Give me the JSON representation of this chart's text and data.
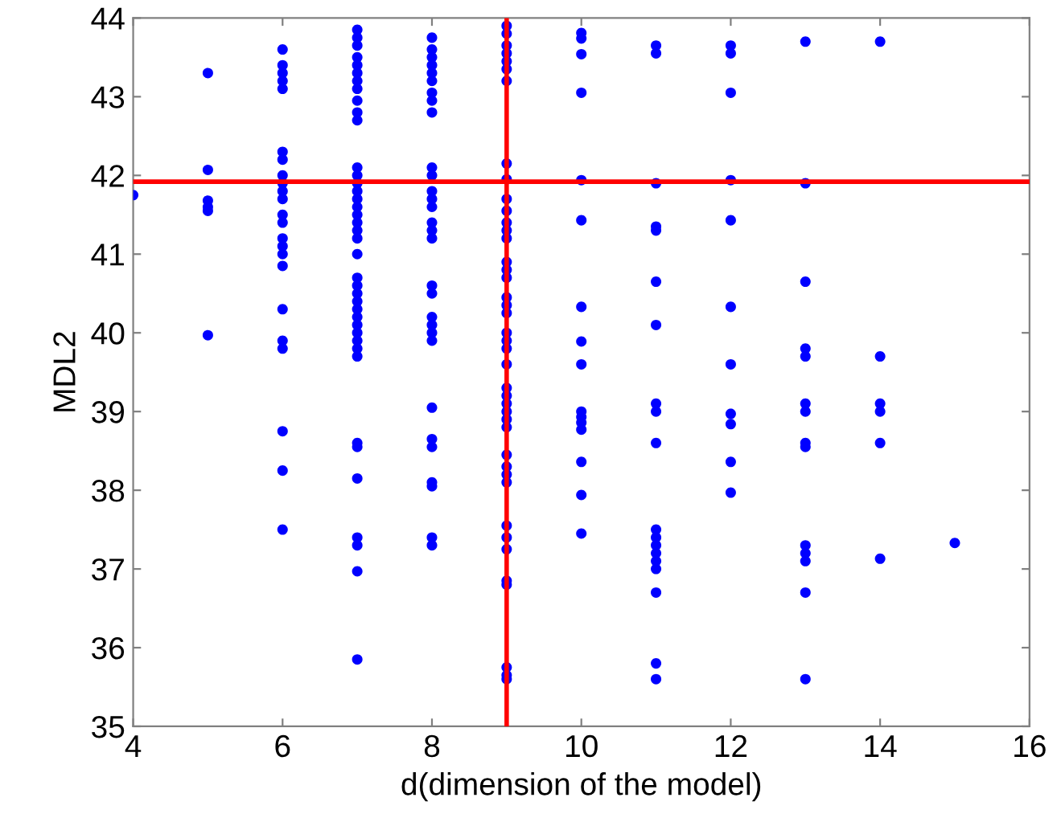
{
  "chart_data": {
    "type": "scatter",
    "xlabel": "d(dimension of the model)",
    "ylabel": "MDL2",
    "xlim": [
      4,
      16
    ],
    "xticks": [
      4,
      6,
      8,
      10,
      12,
      14,
      16
    ],
    "ylim": [
      35,
      44
    ],
    "yticks": [
      35,
      36,
      37,
      38,
      39,
      40,
      41,
      42,
      43,
      44
    ],
    "grid": false,
    "legend": false,
    "marker": "circle",
    "ref_lines": [
      {
        "axis": "x",
        "value": 9,
        "color": "#ff0000"
      },
      {
        "axis": "y",
        "value": 41.92,
        "color": "#ff0000"
      }
    ],
    "series": [
      {
        "color": "#0000ff",
        "x": [
          4,
          5,
          5,
          5,
          5,
          5,
          5,
          6,
          6,
          6,
          6,
          6,
          6,
          6,
          6,
          6,
          6,
          6,
          6,
          6,
          6,
          6,
          6,
          6,
          6,
          6,
          6,
          6,
          6,
          6,
          7,
          7,
          7,
          7,
          7,
          7,
          7,
          7,
          7,
          7,
          7,
          7,
          7,
          7,
          7,
          7,
          7,
          7,
          7,
          7,
          7,
          7,
          7,
          7,
          7,
          7,
          7,
          7,
          7,
          7,
          7,
          7,
          7,
          7,
          7,
          7,
          7,
          7,
          7,
          7,
          8,
          8,
          8,
          8,
          8,
          8,
          8,
          8,
          8,
          8,
          8,
          8,
          8,
          8,
          8,
          8,
          8,
          8,
          8,
          8,
          8,
          8,
          8,
          8,
          8,
          8,
          8,
          8,
          8,
          8,
          9,
          9,
          9,
          9,
          9,
          9,
          9,
          9,
          9,
          9,
          9,
          9,
          9,
          9,
          9,
          9,
          9,
          9,
          9,
          9,
          9,
          9,
          9,
          9,
          9,
          9,
          9,
          9,
          9,
          9,
          9,
          9,
          9,
          9,
          9,
          9,
          9,
          9,
          9,
          9,
          9,
          9,
          10,
          10,
          10,
          10,
          10,
          10,
          10,
          10,
          10,
          10,
          10,
          10,
          10,
          10,
          10,
          10,
          11,
          11,
          11,
          11,
          11,
          11,
          11,
          11,
          11,
          11,
          11,
          11,
          11,
          11,
          11,
          11,
          11,
          11,
          11,
          12,
          12,
          12,
          12,
          12,
          12,
          12,
          12,
          12,
          12,
          12,
          13,
          13,
          13,
          13,
          13,
          13,
          13,
          13,
          13,
          13,
          13,
          13,
          13,
          13,
          14,
          14,
          14,
          14,
          14,
          14,
          15
        ],
        "values": [
          41.75,
          43.3,
          42.07,
          41.68,
          41.6,
          41.55,
          39.97,
          43.6,
          43.4,
          43.3,
          43.2,
          43.1,
          42.3,
          42.2,
          42.0,
          41.9,
          41.8,
          41.7,
          41.5,
          41.4,
          41.2,
          41.1,
          41.0,
          40.85,
          40.3,
          39.9,
          39.8,
          38.75,
          38.25,
          37.5,
          43.85,
          43.75,
          43.65,
          43.5,
          43.4,
          43.3,
          43.2,
          43.1,
          42.95,
          42.8,
          42.7,
          42.1,
          42.0,
          41.9,
          41.8,
          41.7,
          41.6,
          41.5,
          41.4,
          41.3,
          41.2,
          41.0,
          40.7,
          40.6,
          40.5,
          40.4,
          40.3,
          40.2,
          40.1,
          40.0,
          39.9,
          39.8,
          39.7,
          38.6,
          38.55,
          38.15,
          37.4,
          37.3,
          36.97,
          35.85,
          43.75,
          43.6,
          43.5,
          43.4,
          43.3,
          43.2,
          43.05,
          42.95,
          42.8,
          42.1,
          42.0,
          41.8,
          41.7,
          41.6,
          41.4,
          41.3,
          41.2,
          40.6,
          40.5,
          40.2,
          40.1,
          40.0,
          39.9,
          39.05,
          38.65,
          38.55,
          38.1,
          38.05,
          37.4,
          37.3,
          43.9,
          43.8,
          43.65,
          43.55,
          43.45,
          43.35,
          43.2,
          42.15,
          41.95,
          41.7,
          41.55,
          41.4,
          41.3,
          41.2,
          40.9,
          40.8,
          40.7,
          40.45,
          40.35,
          40.25,
          40.0,
          39.9,
          39.8,
          39.6,
          39.3,
          39.2,
          39.1,
          39.0,
          38.9,
          38.8,
          38.45,
          38.3,
          38.2,
          38.1,
          37.55,
          37.4,
          37.25,
          36.85,
          36.8,
          35.75,
          35.65,
          35.6,
          43.81,
          43.74,
          43.54,
          43.05,
          41.94,
          41.43,
          40.33,
          39.89,
          39.6,
          39.0,
          38.93,
          38.86,
          38.77,
          38.36,
          37.94,
          37.45,
          43.65,
          43.55,
          41.9,
          41.35,
          41.3,
          40.65,
          40.1,
          39.1,
          39.0,
          38.6,
          37.5,
          37.4,
          37.3,
          37.2,
          37.1,
          37.0,
          36.7,
          35.8,
          35.6,
          43.65,
          43.55,
          43.05,
          41.94,
          41.43,
          40.33,
          39.6,
          38.97,
          38.84,
          38.36,
          37.97,
          43.7,
          41.9,
          40.65,
          39.8,
          39.7,
          39.1,
          39.0,
          38.6,
          38.55,
          37.3,
          37.2,
          37.1,
          36.7,
          35.6,
          43.7,
          39.7,
          39.1,
          39.0,
          38.6,
          37.13,
          37.33
        ]
      }
    ]
  }
}
